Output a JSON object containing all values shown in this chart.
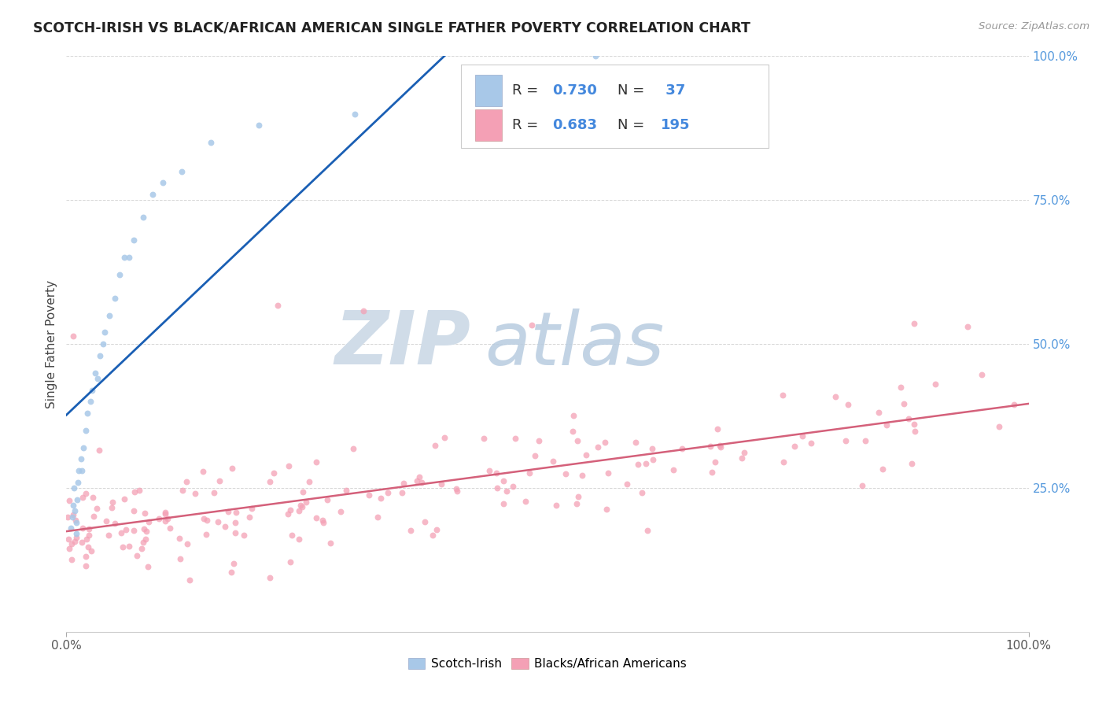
{
  "title": "SCOTCH-IRISH VS BLACK/AFRICAN AMERICAN SINGLE FATHER POVERTY CORRELATION CHART",
  "source": "Source: ZipAtlas.com",
  "ylabel": "Single Father Poverty",
  "scotch_irish_color": "#a8c8e8",
  "black_aa_color": "#f4a0b5",
  "trendline_scotch_color": "#1a5fb4",
  "trendline_black_color": "#d4607a",
  "watermark_zip_color": "#d0dce8",
  "watermark_atlas_color": "#b8cce0",
  "background_color": "#ffffff",
  "title_fontsize": 12.5,
  "legend_fontsize": 13,
  "legend_R1": "0.730",
  "legend_N1": " 37",
  "legend_R2": "0.683",
  "legend_N2": "195",
  "legend_color_blue": "#4488dd",
  "legend_text_color": "#333333",
  "ytick_color": "#5599dd",
  "source_color": "#999999"
}
